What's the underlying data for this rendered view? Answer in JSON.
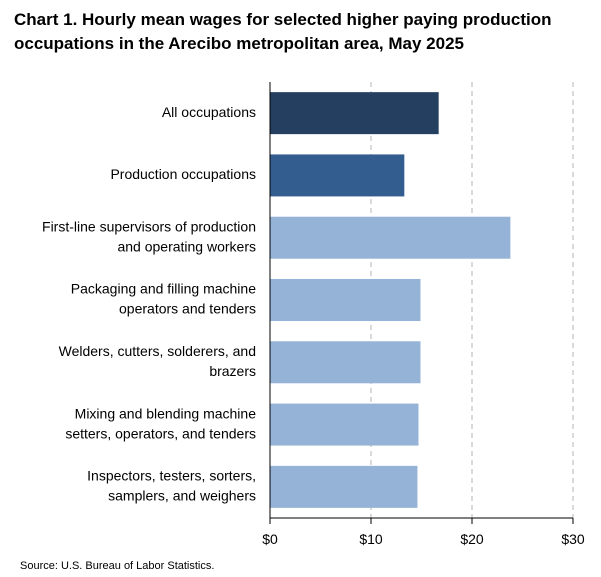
{
  "title": "Chart 1. Hourly mean wages for selected higher paying production occupations in the Arecibo metropolitan area, May 2025",
  "source": "Source: U.S. Bureau of Labor Statistics.",
  "chart_data": {
    "type": "bar",
    "orientation": "horizontal",
    "title": "Chart 1. Hourly mean wages for selected higher paying production occupations in the Arecibo metropolitan area, May 2025",
    "categories": [
      [
        "All occupations"
      ],
      [
        "Production occupations"
      ],
      [
        "First-line supervisors of production",
        "and operating workers"
      ],
      [
        "Packaging and filling machine",
        "operators and tenders"
      ],
      [
        "Welders, cutters, solderers, and",
        "brazers"
      ],
      [
        "Mixing and blending machine",
        "setters, operators, and tenders"
      ],
      [
        "Inspectors, testers, sorters,",
        "samplers, and weighers"
      ]
    ],
    "values": [
      16.7,
      13.3,
      23.8,
      14.9,
      14.9,
      14.7,
      14.6
    ],
    "bar_colors": [
      "#253f60",
      "#345d8f",
      "#95b3d7",
      "#95b3d7",
      "#95b3d7",
      "#95b3d7",
      "#95b3d7"
    ],
    "xlim": [
      0,
      30
    ],
    "xticks": [
      0,
      10,
      20,
      30
    ],
    "xtick_labels": [
      "$0",
      "$10",
      "$20",
      "$30"
    ],
    "grid": "vertical-dashed",
    "legend": "none"
  }
}
